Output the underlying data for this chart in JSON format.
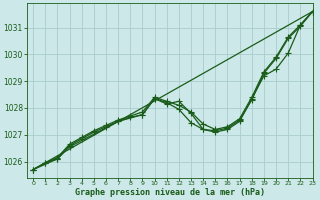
{
  "bg_color": "#cce8e8",
  "grid_color": "#aacccc",
  "line_color": "#1a5c1a",
  "title": "Graphe pression niveau de la mer (hPa)",
  "xlim": [
    -0.5,
    23
  ],
  "ylim": [
    1025.4,
    1031.9
  ],
  "yticks": [
    1026,
    1027,
    1028,
    1029,
    1030,
    1031
  ],
  "xticks": [
    0,
    1,
    2,
    3,
    4,
    5,
    6,
    7,
    8,
    9,
    10,
    11,
    12,
    13,
    14,
    15,
    16,
    17,
    18,
    19,
    20,
    21,
    22,
    23
  ],
  "series": [
    {
      "x": [
        0,
        23
      ],
      "y": [
        1025.7,
        1031.6
      ],
      "marker": null,
      "linewidth": 0.9
    },
    {
      "x": [
        0,
        1,
        2,
        3,
        4,
        5,
        6,
        7,
        8,
        9,
        10,
        11,
        12,
        13,
        14,
        15,
        16,
        17,
        18,
        19,
        20,
        21,
        22,
        23
      ],
      "y": [
        1025.7,
        1025.95,
        1026.1,
        1026.6,
        1026.85,
        1027.1,
        1027.3,
        1027.5,
        1027.65,
        1027.75,
        1028.35,
        1028.15,
        1028.25,
        1027.8,
        1027.2,
        1027.15,
        1027.25,
        1027.55,
        1028.3,
        1029.3,
        1029.85,
        1030.6,
        1031.05,
        1031.6
      ],
      "marker": "+",
      "markersize": 4,
      "linewidth": 0.9
    },
    {
      "x": [
        0,
        1,
        2,
        3,
        4,
        5,
        6,
        7,
        8,
        9,
        10,
        11,
        12,
        13,
        14,
        15,
        16,
        17,
        18,
        19,
        20,
        21,
        22,
        23
      ],
      "y": [
        1025.7,
        1025.95,
        1026.15,
        1026.65,
        1026.9,
        1027.15,
        1027.35,
        1027.55,
        1027.7,
        1027.85,
        1028.4,
        1028.25,
        1028.1,
        1027.85,
        1027.4,
        1027.2,
        1027.3,
        1027.6,
        1028.4,
        1029.35,
        1029.9,
        1030.65,
        1031.1,
        1031.6
      ],
      "marker": "+",
      "markersize": 4,
      "linewidth": 0.9
    },
    {
      "x": [
        0,
        2,
        3,
        7,
        9,
        10,
        11,
        12,
        13,
        14,
        15,
        16,
        17,
        18,
        19,
        20,
        21,
        22,
        23
      ],
      "y": [
        1025.7,
        1026.1,
        1026.55,
        1027.5,
        1027.75,
        1028.35,
        1028.2,
        1027.95,
        1027.45,
        1027.2,
        1027.1,
        1027.2,
        1027.5,
        1028.35,
        1029.2,
        1029.45,
        1030.05,
        1031.1,
        1031.6
      ],
      "marker": "+",
      "markersize": 4,
      "linewidth": 0.9
    }
  ]
}
